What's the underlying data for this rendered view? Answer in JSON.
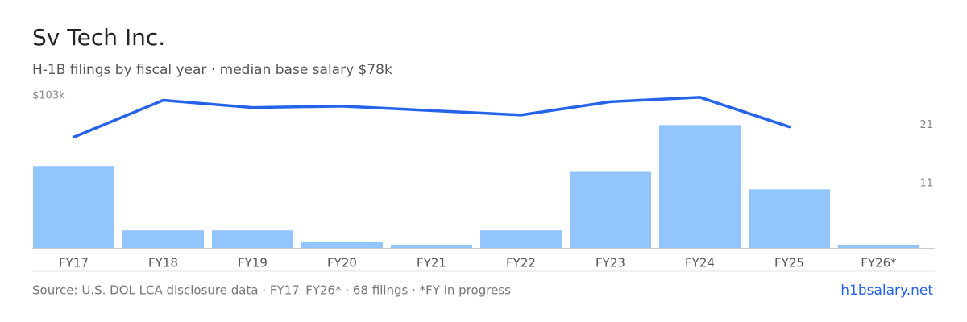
{
  "chart_data": {
    "type": "bar",
    "title": "Sv Tech Inc.",
    "subtitle": "H-1B filings by fiscal year · median base salary $78k",
    "categories": [
      "FY17",
      "FY18",
      "FY19",
      "FY20",
      "FY21",
      "FY22",
      "FY23",
      "FY24",
      "FY25",
      "FY26*"
    ],
    "series": [
      {
        "type": "bar",
        "axis": "y2",
        "color": "#93c5fd",
        "values": [
          14,
          3,
          3,
          1,
          0,
          3,
          13,
          21,
          10,
          0
        ]
      },
      {
        "type": "line",
        "color": "#2563eb",
        "values": [
          75,
          100,
          95,
          96,
          93,
          90,
          99,
          102,
          82,
          null
        ]
      }
    ],
    "ylim": [
      0,
      103
    ],
    "yticks": [
      {
        "value": 103,
        "label": "$103k"
      }
    ],
    "y2lim": [
      0,
      26
    ],
    "y2ticks": [
      11,
      21
    ],
    "source": "Source: U.S. DOL LCA disclosure data · FY17–FY26* · 68 filings · *FY in progress",
    "brand": "h1bsalary.net"
  }
}
